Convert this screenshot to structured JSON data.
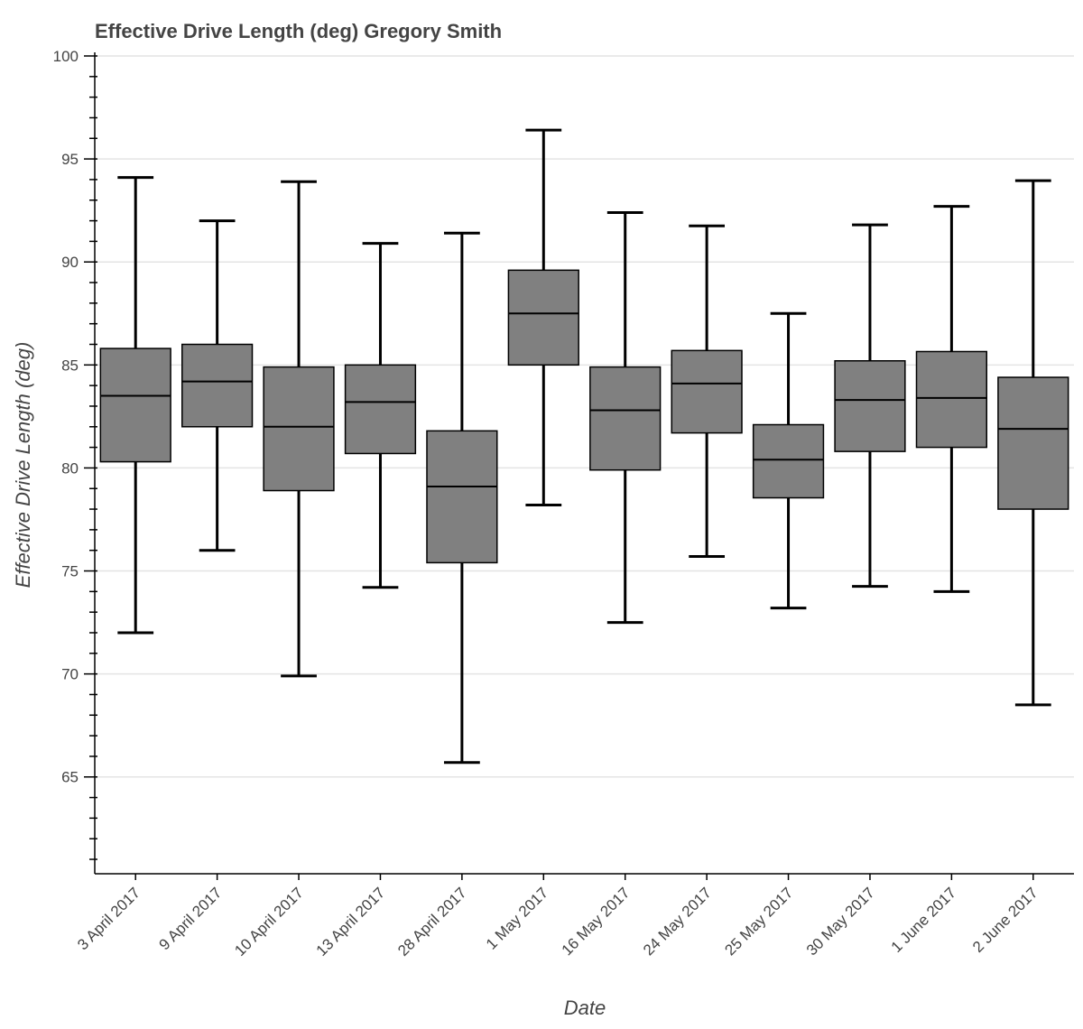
{
  "chart_data": {
    "type": "box",
    "title": "Effective Drive Length (deg)  Gregory Smith",
    "xlabel": "Date",
    "ylabel": "Effective Drive Length (deg)",
    "ylim": [
      60.3,
      100
    ],
    "yticks": [
      65,
      70,
      75,
      80,
      85,
      90,
      95,
      100
    ],
    "grid": true,
    "box_color": "#808080",
    "categories": [
      "3 April 2017",
      "9 April 2017",
      "10 April 2017",
      "13 April 2017",
      "28 April 2017",
      "1 May 2017",
      "16 May 2017",
      "24 May 2017",
      "25 May 2017",
      "30 May 2017",
      "1 June 2017",
      "2 June 2017"
    ],
    "series": [
      {
        "name": "upper_whisker",
        "values": [
          94.1,
          92.0,
          93.9,
          90.9,
          91.4,
          96.4,
          92.4,
          91.75,
          87.5,
          91.8,
          92.7,
          93.95
        ]
      },
      {
        "name": "q3",
        "values": [
          85.8,
          86.0,
          84.9,
          85.0,
          81.8,
          89.6,
          84.9,
          85.7,
          82.1,
          85.2,
          85.65,
          84.4
        ]
      },
      {
        "name": "median",
        "values": [
          83.5,
          84.2,
          82.0,
          83.2,
          79.1,
          87.5,
          82.8,
          84.1,
          80.4,
          83.3,
          83.4,
          81.9
        ]
      },
      {
        "name": "q1",
        "values": [
          80.3,
          82.0,
          78.9,
          80.7,
          75.4,
          85.0,
          79.9,
          81.7,
          78.55,
          80.8,
          81.0,
          78.0
        ]
      },
      {
        "name": "lower_whisker",
        "values": [
          72.0,
          76.0,
          69.9,
          74.2,
          65.7,
          78.2,
          72.5,
          75.7,
          73.2,
          74.25,
          74.0,
          68.5
        ]
      }
    ]
  }
}
